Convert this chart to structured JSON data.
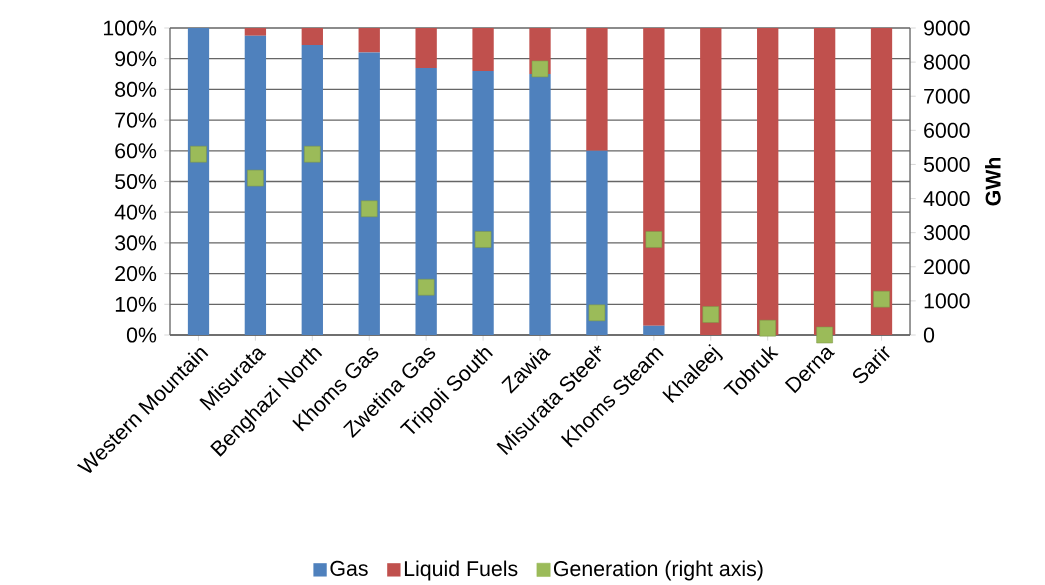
{
  "chart_data": {
    "type": "bar",
    "stacked": true,
    "categories": [
      "Western  Mountain",
      "Misurata",
      "Benghazi North",
      "Khoms Gas",
      "Zwetina Gas",
      "Tripoli South",
      "Zawia",
      "Misurata Steel*",
      "Khoms Steam",
      "Khaleej",
      "Tobruk",
      "Derna",
      "Sarir"
    ],
    "series": [
      {
        "name": "Gas",
        "color": "#4f81bd",
        "values": [
          100,
          97.5,
          94.5,
          92,
          87,
          86,
          85,
          60,
          3,
          0,
          0,
          0,
          0
        ]
      },
      {
        "name": "Liquid Fuels",
        "color": "#c0504d",
        "values": [
          0,
          2.5,
          5.5,
          8,
          13,
          14,
          15,
          40,
          97,
          100,
          100,
          100,
          100
        ]
      },
      {
        "name": "Generation (right axis)",
        "color": "#9bbb59",
        "type": "scatter",
        "axis": "y2",
        "marker": "square",
        "values": [
          5300,
          4600,
          5300,
          3700,
          1400,
          2800,
          7800,
          650,
          2800,
          600,
          200,
          0,
          1050
        ]
      }
    ],
    "ylim": [
      0,
      100
    ],
    "yticks": [
      {
        "value": 0,
        "label": "0%"
      },
      {
        "value": 10,
        "label": "10%"
      },
      {
        "value": 20,
        "label": "20%"
      },
      {
        "value": 30,
        "label": "30%"
      },
      {
        "value": 40,
        "label": "40%"
      },
      {
        "value": 50,
        "label": "50%"
      },
      {
        "value": 60,
        "label": "60%"
      },
      {
        "value": 70,
        "label": "70%"
      },
      {
        "value": 80,
        "label": "80%"
      },
      {
        "value": 90,
        "label": "90%"
      },
      {
        "value": 100,
        "label": "100%"
      }
    ],
    "y2lim": [
      0,
      9000
    ],
    "y2ticks": [
      0,
      1000,
      2000,
      3000,
      4000,
      5000,
      6000,
      7000,
      8000,
      9000
    ],
    "y2label": "GWh",
    "grid": "y",
    "legend": "bottom"
  }
}
